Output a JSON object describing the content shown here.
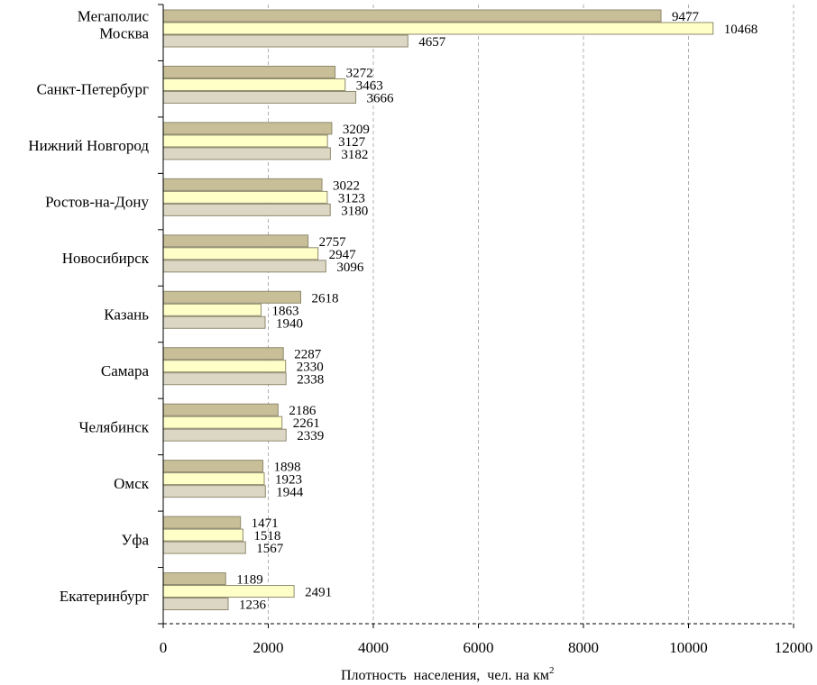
{
  "chart_data": {
    "type": "bar",
    "orientation": "horizontal",
    "categories": [
      "Мегаполис\nМосква",
      "Санкт-Петербург",
      "Нижний Новгород",
      "Ростов-на-Дону",
      "Новосибирск",
      "Казань",
      "Самара",
      "Челябинск",
      "Омск",
      "Уфа",
      "Екатеринбург"
    ],
    "series": [
      {
        "color": "#c8bf98",
        "values": [
          9477,
          3272,
          3209,
          3022,
          2757,
          2618,
          2287,
          2186,
          1898,
          1471,
          1189
        ]
      },
      {
        "color": "#ffffc8",
        "values": [
          10468,
          3463,
          3127,
          3123,
          2947,
          1863,
          2330,
          2261,
          1923,
          1518,
          2491
        ]
      },
      {
        "color": "#dcd7c4",
        "values": [
          4657,
          3666,
          3182,
          3180,
          3096,
          1940,
          2338,
          2339,
          1944,
          1567,
          1236
        ]
      }
    ],
    "xlabel": "Плотность  населения,  чел. на км",
    "xlabel_sup": "2",
    "xlim": [
      0,
      12000
    ],
    "xticks": [
      0,
      2000,
      4000,
      6000,
      8000,
      10000,
      12000
    ],
    "grid": "vertical dashed",
    "legend": "none"
  }
}
